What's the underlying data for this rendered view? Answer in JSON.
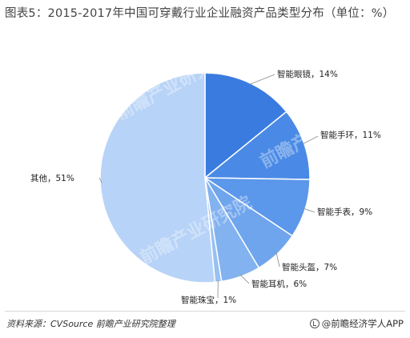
{
  "title": "图表5：2015-2017年中国可穿戴行业企业融资产品类型分布（单位：%）",
  "source": "资料来源：CVSource  前瞻产业研究院整理",
  "brand": "@前瞻经济学人APP",
  "watermark": "前瞻产业研究院",
  "colors": {
    "series": [
      "#3a7be0",
      "#4a8ae6",
      "#5b97ea",
      "#6fa5ed",
      "#82b2ef",
      "#97c0f3",
      "#b7d3f7"
    ]
  },
  "chart_data": {
    "type": "pie",
    "title": "图表5：2015-2017年中国可穿戴行业企业融资产品类型分布（单位：%）",
    "categories": [
      "智能眼镜",
      "智能手环",
      "智能手表",
      "智能头盔",
      "智能耳机",
      "智能珠宝",
      "其他"
    ],
    "values": [
      14,
      11,
      9,
      7,
      6,
      1,
      51
    ],
    "labels": [
      "智能眼镜，14%",
      "智能手环，11%",
      "智能手表，9%",
      "智能头盔，7%",
      "智能耳机，6%",
      "智能珠宝，1%",
      "其他，51%"
    ],
    "start_angle": "12 o'clock",
    "direction": "clockwise"
  }
}
